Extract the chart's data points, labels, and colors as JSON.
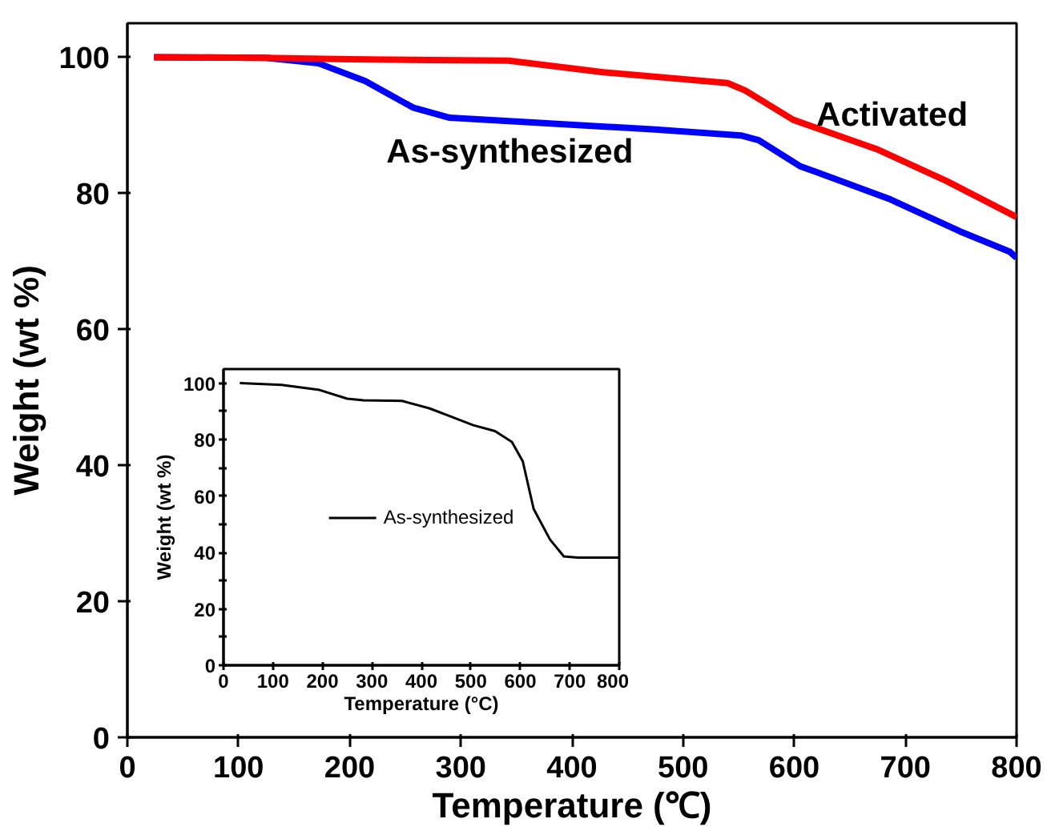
{
  "chart_data": [
    {
      "type": "line",
      "xlabel": "Temperature (℃)",
      "ylabel": "Weight (wt %)",
      "xlim": [
        0,
        800
      ],
      "ylim": [
        0,
        105
      ],
      "xticks": [
        0,
        100,
        200,
        300,
        400,
        500,
        600,
        700,
        800
      ],
      "yticks": [
        0,
        20,
        40,
        60,
        80,
        100
      ],
      "grid": false,
      "legend": false,
      "line_style": "solid",
      "marker": "none",
      "series": [
        {
          "name": "Activated",
          "color": "#ff0000",
          "x": [
            24,
            120,
            200,
            343,
            428,
            540,
            556,
            599,
            674,
            737,
            800
          ],
          "values": [
            100,
            99.9,
            99.7,
            99.5,
            97.8,
            96.2,
            95.1,
            90.8,
            86.5,
            81.8,
            76.5
          ]
        },
        {
          "name": "As-synthesized",
          "color": "#0000ff",
          "x": [
            24,
            125,
            172,
            214,
            257,
            290,
            365,
            472,
            552,
            568,
            605,
            685,
            749,
            794,
            800
          ],
          "values": [
            100,
            99.9,
            99.1,
            96.5,
            92.6,
            91.1,
            90.4,
            89.4,
            88.5,
            87.8,
            84,
            79.2,
            74.4,
            71.4,
            70.5
          ]
        }
      ]
    },
    {
      "type": "line",
      "xlabel": "Temperature (°C)",
      "ylabel": "Weight (wt %)",
      "xlim": [
        0,
        800
      ],
      "ylim": [
        0,
        105
      ],
      "xticks": [
        0,
        100,
        200,
        300,
        400,
        500,
        600,
        700,
        800
      ],
      "yticks": [
        0,
        {
          "value": 10,
          "label": null
        },
        20,
        {
          "value": 30,
          "label": null
        },
        40,
        {
          "value": 50,
          "label": null
        },
        60,
        {
          "value": 70,
          "label": null
        },
        80,
        {
          "value": 90,
          "label": null
        },
        100
      ],
      "grid": false,
      "legend": "center",
      "line_style": "solid",
      "marker": "none",
      "series": [
        {
          "name": "As-synthesized",
          "color": "#000000",
          "x": [
            33,
            117,
            194,
            250,
            283,
            361,
            416,
            461,
            505,
            549,
            583,
            605,
            627,
            660,
            688,
            716,
            800
          ],
          "values": [
            100,
            99.4,
            97.6,
            94.5,
            93.9,
            93.7,
            91.1,
            88.1,
            85.1,
            83,
            79.2,
            72.3,
            55.4,
            44.6,
            38.6,
            38.2,
            38.2
          ]
        }
      ]
    }
  ]
}
